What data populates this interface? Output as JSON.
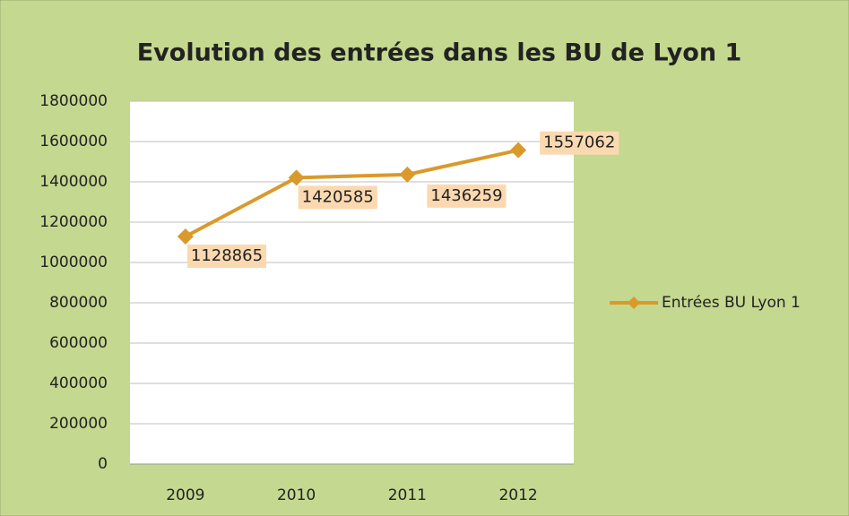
{
  "chart_data": {
    "type": "line",
    "title": "Evolution des entrées dans les BU de Lyon 1",
    "categories": [
      "2009",
      "2010",
      "2011",
      "2012"
    ],
    "series": [
      {
        "name": "Entrées BU Lyon 1",
        "color": "#d99a2b",
        "values": [
          1128865,
          1420585,
          1436259,
          1557062
        ]
      }
    ],
    "ylim": [
      0,
      1800000
    ],
    "yticks": [
      0,
      200000,
      400000,
      600000,
      800000,
      1000000,
      1200000,
      1400000,
      1600000,
      1800000
    ],
    "grid": true,
    "legend": "right"
  }
}
